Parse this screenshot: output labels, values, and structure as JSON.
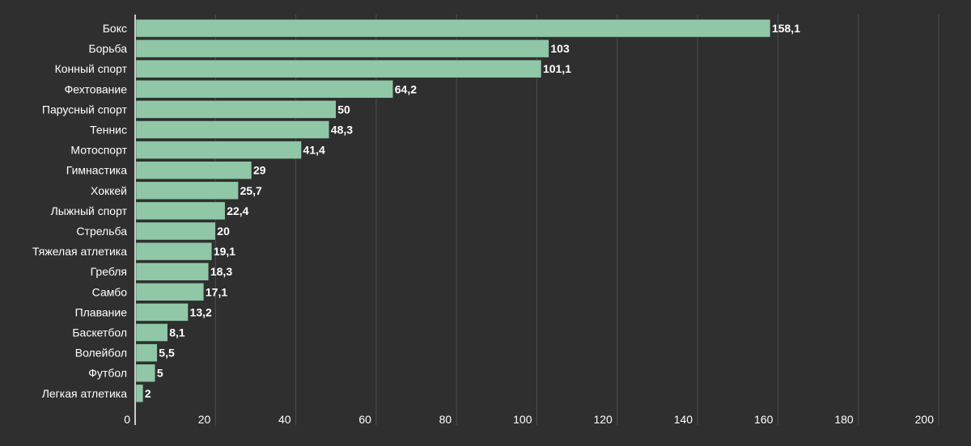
{
  "chart_data": {
    "type": "bar",
    "orientation": "horizontal",
    "categories": [
      "Бокс",
      "Борьба",
      "Конный спорт",
      "Фехтование",
      "Парусный спорт",
      "Теннис",
      "Мотоспорт",
      "Гимнастика",
      "Хоккей",
      "Лыжный спорт",
      "Стрельба",
      "Тяжелая атлетика",
      "Гребля",
      "Самбо",
      "Плавание",
      "Баскетбол",
      "Волейбол",
      "Футбол",
      "Легкая атлетика"
    ],
    "values": [
      158.1,
      103,
      101.1,
      64.2,
      50,
      48.3,
      41.4,
      29,
      25.7,
      22.4,
      20,
      19.1,
      18.3,
      17.1,
      13.2,
      8.1,
      5.5,
      5,
      2
    ],
    "value_labels": [
      "158,1",
      "103",
      "101,1",
      "64,2",
      "50",
      "48,3",
      "41,4",
      "29",
      "25,7",
      "22,4",
      "20",
      "19,1",
      "18,3",
      "17,1",
      "13,2",
      "8,1",
      "5,5",
      "5",
      "2"
    ],
    "xlim": [
      0,
      200
    ],
    "ticks": [
      0,
      20,
      40,
      60,
      80,
      100,
      120,
      140,
      160,
      180,
      200
    ],
    "tick_labels": [
      "0",
      "20",
      "40",
      "60",
      "80",
      "100",
      "120",
      "140",
      "160",
      "180",
      "200"
    ],
    "grid": true,
    "bar_color": "#8fc7a7",
    "background": "#2f2f2f",
    "text_color": "#ffffff",
    "grid_color": "#4e4e4e"
  }
}
